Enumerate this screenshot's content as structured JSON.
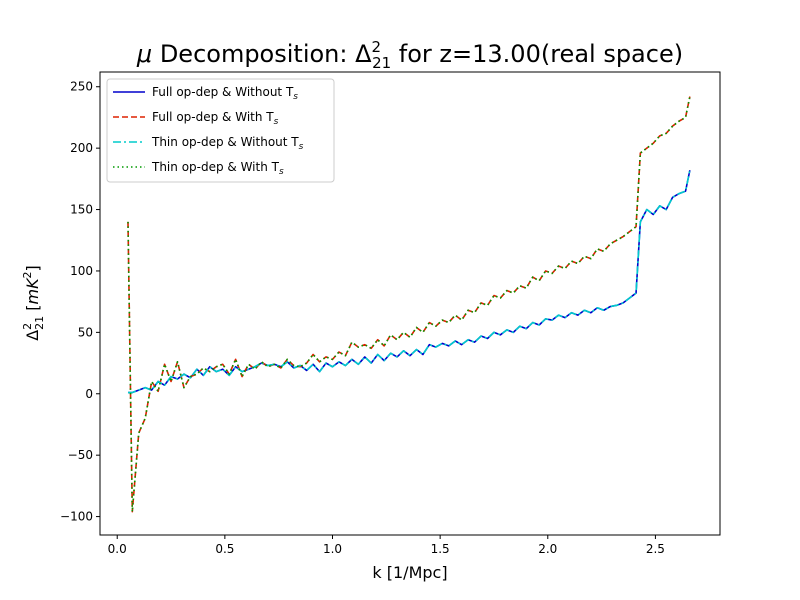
{
  "chart_data": {
    "type": "line",
    "title": "μ Decomposition: Δ²₂₁ for z=13.00(real space)",
    "title_parts": {
      "mu": "μ",
      "pre": " Decomposition: ",
      "delta": "Δ",
      "sup": "2",
      "sub": "21",
      "post": " for z=13.00(real space)"
    },
    "xlabel": "k [1/Mpc]",
    "ylabel": "Δ²₂₁ [mK²]",
    "ylabel_parts": {
      "delta": "Δ",
      "sup": "2",
      "sub": "21",
      "open": " [",
      "unit_main": "mK",
      "unit_sup": "2",
      "close": "]"
    },
    "xlim": [
      -0.08,
      2.8
    ],
    "ylim": [
      -115,
      262
    ],
    "xticks": [
      0.0,
      0.5,
      1.0,
      1.5,
      2.0,
      2.5
    ],
    "xtick_labels": [
      "0.0",
      "0.5",
      "1.0",
      "1.5",
      "2.0",
      "2.5"
    ],
    "yticks": [
      -100,
      -50,
      0,
      50,
      100,
      150,
      200,
      250
    ],
    "ytick_labels": [
      "−100",
      "−50",
      "0",
      "50",
      "100",
      "150",
      "200",
      "250"
    ],
    "grid": false,
    "legend_position": "top-left",
    "x": [
      0.05,
      0.07,
      0.1,
      0.13,
      0.16,
      0.19,
      0.22,
      0.25,
      0.28,
      0.31,
      0.34,
      0.37,
      0.4,
      0.43,
      0.46,
      0.49,
      0.52,
      0.55,
      0.58,
      0.61,
      0.64,
      0.67,
      0.7,
      0.73,
      0.76,
      0.79,
      0.82,
      0.85,
      0.88,
      0.91,
      0.94,
      0.97,
      1.0,
      1.03,
      1.06,
      1.09,
      1.12,
      1.15,
      1.18,
      1.21,
      1.24,
      1.27,
      1.3,
      1.33,
      1.36,
      1.39,
      1.42,
      1.45,
      1.48,
      1.51,
      1.54,
      1.57,
      1.6,
      1.63,
      1.66,
      1.69,
      1.72,
      1.75,
      1.78,
      1.81,
      1.84,
      1.87,
      1.9,
      1.93,
      1.96,
      1.99,
      2.02,
      2.05,
      2.08,
      2.11,
      2.14,
      2.17,
      2.2,
      2.23,
      2.26,
      2.29,
      2.32,
      2.35,
      2.38,
      2.41,
      2.43,
      2.46,
      2.49,
      2.52,
      2.55,
      2.58,
      2.61,
      2.64,
      2.66
    ],
    "series": [
      {
        "name": "Full op-dep & Without T",
        "name_sub": "s",
        "color": "#0000cc",
        "dash": "solid",
        "values": [
          1,
          1,
          3,
          5,
          3,
          10,
          7,
          14,
          12,
          16,
          13,
          20,
          15,
          22,
          18,
          20,
          15,
          22,
          18,
          20,
          22,
          25,
          23,
          24,
          22,
          26,
          21,
          23,
          19,
          24,
          18,
          25,
          22,
          26,
          23,
          28,
          24,
          30,
          25,
          32,
          27,
          33,
          30,
          35,
          31,
          36,
          32,
          40,
          38,
          41,
          39,
          43,
          40,
          44,
          42,
          47,
          45,
          50,
          48,
          52,
          50,
          55,
          53,
          58,
          56,
          61,
          60,
          64,
          62,
          66,
          64,
          68,
          66,
          70,
          68,
          71,
          72,
          74,
          78,
          82,
          140,
          150,
          146,
          153,
          150,
          160,
          163,
          165,
          182
        ]
      },
      {
        "name": "Full op-dep & With T",
        "name_sub": "s",
        "color": "#dd2200",
        "dash": "dashed",
        "values": [
          140,
          -96,
          -32,
          -20,
          10,
          2,
          24,
          10,
          26,
          5,
          14,
          16,
          21,
          18,
          22,
          24,
          16,
          28,
          14,
          24,
          20,
          26,
          22,
          24,
          21,
          28,
          23,
          22,
          25,
          32,
          26,
          30,
          28,
          34,
          31,
          42,
          38,
          40,
          37,
          44,
          39,
          48,
          44,
          50,
          46,
          54,
          50,
          58,
          55,
          60,
          58,
          64,
          60,
          68,
          66,
          74,
          72,
          80,
          78,
          84,
          82,
          88,
          86,
          95,
          92,
          100,
          98,
          104,
          102,
          108,
          106,
          112,
          110,
          118,
          116,
          122,
          125,
          128,
          132,
          136,
          196,
          200,
          204,
          210,
          212,
          218,
          222,
          225,
          242
        ]
      },
      {
        "name": "Thin op-dep & Without T",
        "name_sub": "s",
        "color": "#00cccc",
        "dash": "dashdot",
        "values": [
          1,
          1,
          3,
          5,
          3,
          10,
          7,
          14,
          12,
          16,
          13,
          20,
          15,
          22,
          18,
          20,
          15,
          22,
          18,
          20,
          22,
          25,
          23,
          24,
          22,
          26,
          21,
          23,
          19,
          24,
          18,
          25,
          22,
          26,
          23,
          28,
          24,
          30,
          25,
          32,
          27,
          33,
          30,
          35,
          31,
          36,
          32,
          40,
          38,
          41,
          39,
          43,
          40,
          44,
          42,
          47,
          45,
          50,
          48,
          52,
          50,
          55,
          53,
          58,
          56,
          61,
          60,
          64,
          62,
          66,
          64,
          68,
          66,
          70,
          68,
          71,
          72,
          74,
          78,
          82,
          140,
          150,
          146,
          153,
          150,
          160,
          163,
          165,
          182
        ]
      },
      {
        "name": "Thin op-dep & With T",
        "name_sub": "s",
        "color": "#009900",
        "dash": "dotted",
        "values": [
          140,
          -96,
          -32,
          -20,
          10,
          2,
          24,
          10,
          26,
          5,
          14,
          16,
          21,
          18,
          22,
          24,
          16,
          28,
          14,
          24,
          20,
          26,
          22,
          24,
          21,
          28,
          23,
          22,
          25,
          32,
          26,
          30,
          28,
          34,
          31,
          42,
          38,
          40,
          37,
          44,
          39,
          48,
          44,
          50,
          46,
          54,
          50,
          58,
          55,
          60,
          58,
          64,
          60,
          68,
          66,
          74,
          72,
          80,
          78,
          84,
          82,
          88,
          86,
          95,
          92,
          100,
          98,
          104,
          102,
          108,
          106,
          112,
          110,
          118,
          116,
          122,
          125,
          128,
          132,
          136,
          196,
          200,
          204,
          210,
          212,
          218,
          222,
          225,
          242
        ]
      }
    ]
  }
}
